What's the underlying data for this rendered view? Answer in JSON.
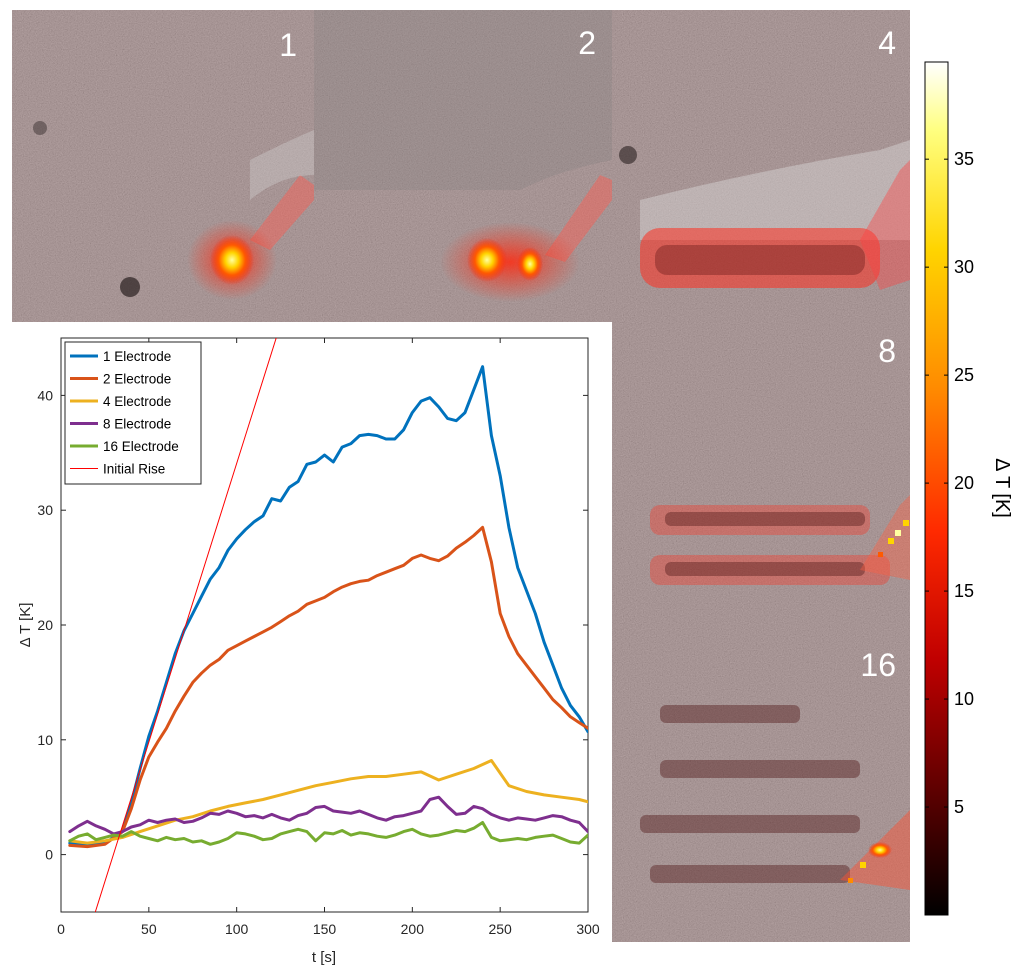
{
  "panels": [
    {
      "label": "1"
    },
    {
      "label": "2"
    },
    {
      "label": "4"
    },
    {
      "label": "8"
    },
    {
      "label": "16"
    }
  ],
  "colorbar": {
    "label": "Δ T [K]",
    "ticks": [
      "5",
      "10",
      "15",
      "20",
      "25",
      "30",
      "35"
    ],
    "range": [
      0,
      39.5
    ],
    "colormap": [
      "#000000",
      "#5a0000",
      "#c00000",
      "#ff2a00",
      "#ff8c00",
      "#ffd400",
      "#ffff80",
      "#ffffff"
    ]
  },
  "chart_data": {
    "type": "line",
    "xlabel": "t [s]",
    "ylabel": "Δ T [K]",
    "xlim": [
      0,
      300
    ],
    "ylim": [
      -5,
      45
    ],
    "xticks": [
      0,
      50,
      100,
      150,
      200,
      250,
      300
    ],
    "yticks": [
      0,
      10,
      20,
      30,
      40
    ],
    "grid": false,
    "legend": "top-left",
    "series": [
      {
        "name": "1 Electrode",
        "color": "#0072BD",
        "x": [
          5,
          15,
          25,
          35,
          40,
          45,
          50,
          55,
          60,
          65,
          70,
          75,
          80,
          85,
          90,
          95,
          100,
          105,
          110,
          115,
          120,
          125,
          130,
          135,
          140,
          145,
          150,
          155,
          160,
          165,
          170,
          175,
          180,
          185,
          190,
          195,
          200,
          205,
          210,
          215,
          220,
          225,
          230,
          235,
          240,
          245,
          250,
          255,
          260,
          265,
          270,
          275,
          280,
          285,
          290,
          295,
          300
        ],
        "y": [
          1.0,
          0.9,
          1.0,
          2.0,
          4.5,
          7.5,
          10.3,
          12.5,
          15.0,
          17.5,
          19.5,
          21.0,
          22.5,
          24.0,
          25.0,
          26.5,
          27.5,
          28.3,
          29.0,
          29.5,
          31.0,
          30.8,
          32.0,
          32.5,
          34.0,
          34.2,
          34.8,
          34.2,
          35.5,
          35.8,
          36.5,
          36.6,
          36.5,
          36.2,
          36.2,
          37.0,
          38.5,
          39.5,
          39.8,
          39.0,
          38.0,
          37.8,
          38.5,
          40.5,
          42.5,
          36.5,
          33.0,
          28.5,
          25.0,
          23.0,
          21.0,
          18.5,
          16.5,
          14.5,
          13.0,
          12.0,
          10.7
        ]
      },
      {
        "name": "2 Electrode",
        "color": "#D95319",
        "x": [
          5,
          15,
          25,
          35,
          40,
          45,
          50,
          55,
          60,
          65,
          70,
          75,
          80,
          85,
          90,
          95,
          100,
          105,
          110,
          115,
          120,
          125,
          130,
          135,
          140,
          145,
          150,
          155,
          160,
          165,
          170,
          175,
          180,
          185,
          190,
          195,
          200,
          205,
          210,
          215,
          220,
          225,
          230,
          235,
          240,
          245,
          250,
          255,
          260,
          265,
          270,
          275,
          280,
          285,
          290,
          295,
          300
        ],
        "y": [
          0.8,
          0.7,
          0.9,
          2.0,
          4.0,
          6.5,
          8.5,
          9.8,
          11.0,
          12.5,
          13.8,
          15.0,
          15.8,
          16.5,
          17.0,
          17.8,
          18.2,
          18.6,
          19.0,
          19.4,
          19.8,
          20.3,
          20.8,
          21.2,
          21.8,
          22.1,
          22.4,
          22.9,
          23.3,
          23.6,
          23.8,
          23.9,
          24.3,
          24.6,
          24.9,
          25.2,
          25.8,
          26.1,
          25.8,
          25.6,
          26.0,
          26.7,
          27.2,
          27.8,
          28.5,
          25.5,
          21.0,
          19.0,
          17.5,
          16.5,
          15.5,
          14.5,
          13.5,
          12.8,
          12.0,
          11.5,
          11.0
        ]
      },
      {
        "name": "4 Electrode",
        "color": "#EDB120",
        "x": [
          5,
          15,
          25,
          35,
          45,
          55,
          65,
          75,
          85,
          95,
          105,
          115,
          125,
          135,
          145,
          155,
          165,
          175,
          185,
          195,
          205,
          215,
          225,
          235,
          245,
          255,
          265,
          275,
          285,
          295,
          300
        ],
        "y": [
          1.2,
          1.0,
          1.2,
          1.5,
          2.0,
          2.5,
          3.0,
          3.3,
          3.8,
          4.2,
          4.5,
          4.8,
          5.2,
          5.6,
          6.0,
          6.3,
          6.6,
          6.8,
          6.8,
          7.0,
          7.2,
          6.5,
          7.0,
          7.5,
          8.2,
          6.0,
          5.5,
          5.2,
          5.0,
          4.8,
          4.6
        ]
      },
      {
        "name": "8 Electrode",
        "color": "#7E2F8E",
        "x": [
          5,
          10,
          15,
          20,
          25,
          30,
          35,
          40,
          45,
          50,
          55,
          60,
          65,
          70,
          75,
          80,
          85,
          90,
          95,
          100,
          105,
          110,
          115,
          120,
          125,
          130,
          135,
          140,
          145,
          150,
          155,
          160,
          165,
          170,
          175,
          180,
          185,
          190,
          195,
          200,
          205,
          210,
          215,
          220,
          225,
          230,
          235,
          240,
          245,
          250,
          255,
          260,
          265,
          270,
          275,
          280,
          285,
          290,
          295,
          300
        ],
        "y": [
          2.0,
          2.5,
          2.9,
          2.5,
          2.2,
          1.8,
          2.0,
          2.4,
          2.6,
          3.0,
          2.8,
          3.0,
          3.1,
          2.8,
          2.9,
          3.2,
          3.6,
          3.5,
          3.8,
          3.6,
          3.3,
          3.4,
          3.2,
          3.5,
          3.2,
          3.0,
          3.4,
          3.6,
          4.1,
          4.2,
          3.8,
          3.7,
          3.6,
          3.8,
          3.5,
          3.2,
          3.0,
          3.3,
          3.4,
          3.6,
          3.8,
          4.8,
          5.0,
          4.2,
          3.5,
          3.6,
          4.2,
          4.0,
          3.5,
          3.2,
          3.0,
          3.2,
          3.1,
          3.0,
          3.2,
          3.4,
          3.3,
          3.0,
          2.8,
          2.0
        ]
      },
      {
        "name": "16 Electrode",
        "color": "#77AC30",
        "x": [
          5,
          10,
          15,
          20,
          25,
          30,
          35,
          40,
          45,
          50,
          55,
          60,
          65,
          70,
          75,
          80,
          85,
          90,
          95,
          100,
          105,
          110,
          115,
          120,
          125,
          130,
          135,
          140,
          145,
          150,
          155,
          160,
          165,
          170,
          175,
          180,
          185,
          190,
          195,
          200,
          205,
          210,
          215,
          220,
          225,
          230,
          235,
          240,
          245,
          250,
          255,
          260,
          265,
          270,
          275,
          280,
          285,
          290,
          295,
          300
        ],
        "y": [
          1.2,
          1.6,
          1.8,
          1.3,
          1.5,
          1.7,
          1.6,
          2.0,
          1.6,
          1.4,
          1.2,
          1.5,
          1.3,
          1.4,
          1.1,
          1.2,
          0.9,
          1.1,
          1.4,
          1.9,
          1.8,
          1.6,
          1.3,
          1.4,
          1.8,
          2.0,
          2.2,
          2.0,
          1.2,
          1.9,
          1.8,
          2.1,
          1.7,
          1.9,
          1.8,
          1.6,
          1.5,
          1.7,
          2.0,
          2.2,
          1.8,
          1.6,
          1.7,
          1.9,
          2.1,
          2.0,
          2.3,
          2.8,
          1.5,
          1.2,
          1.3,
          1.4,
          1.3,
          1.5,
          1.6,
          1.7,
          1.4,
          1.1,
          1.0,
          1.7
        ]
      },
      {
        "name": "Initial Rise",
        "color": "#FF0000",
        "style": "thin",
        "x": [
          19.5,
          122.5
        ],
        "y": [
          -5,
          45
        ]
      }
    ]
  }
}
